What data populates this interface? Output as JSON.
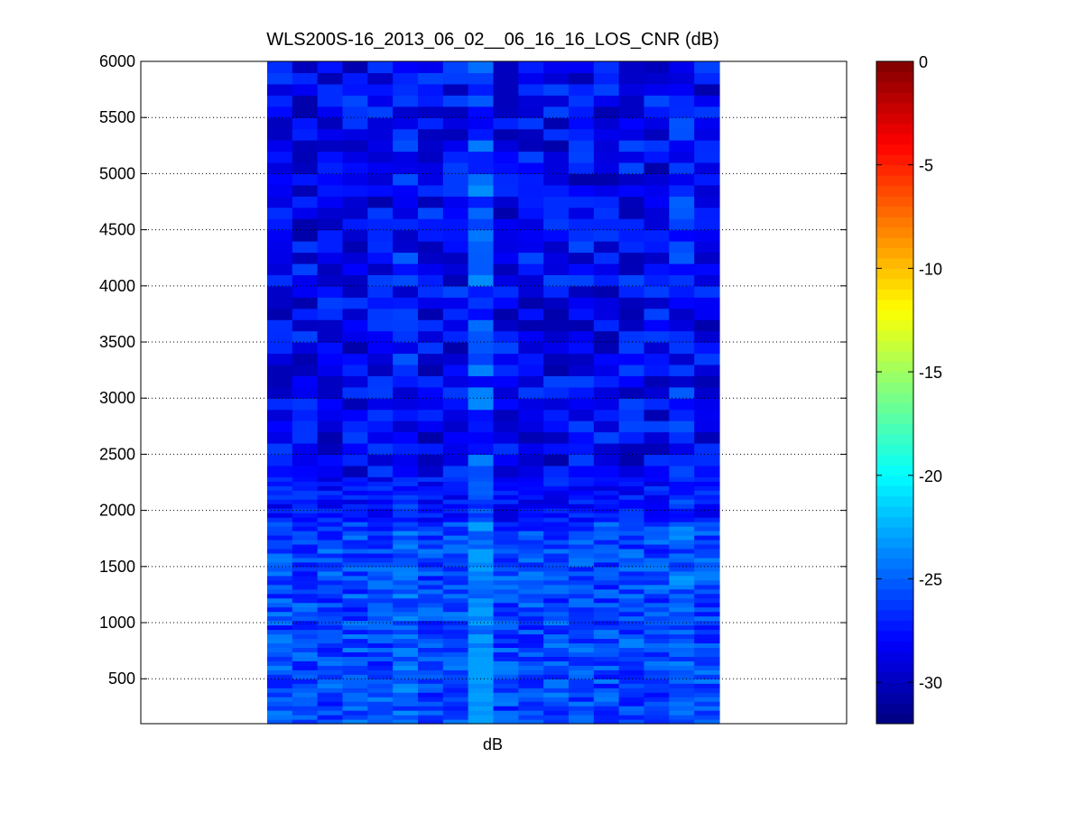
{
  "chart_data": {
    "type": "heatmap",
    "title": "WLS200S-16_2013_06_02__06_16_16_LOS_CNR (dB)",
    "xlabel": "dB",
    "ylabel": "",
    "ylim": [
      100,
      6000
    ],
    "yticks": [
      500,
      1000,
      1500,
      2000,
      2500,
      3000,
      3500,
      4000,
      4500,
      5000,
      5500,
      6000
    ],
    "grid": "horizontal dotted",
    "colormap": "jet",
    "colorbar": {
      "clim": [
        -32,
        0
      ],
      "ticks": [
        0,
        -5,
        -10,
        -15,
        -20,
        -25,
        -30
      ],
      "tick_labels": [
        "0",
        "-5",
        "-10",
        "-15",
        "-20",
        "-25",
        "-30"
      ]
    },
    "columns": 18,
    "rows": [
      {
        "range": [
          100,
          1900
        ],
        "value_range": [
          -30,
          -23
        ],
        "mean": -25.8
      },
      {
        "range": [
          1900,
          2300
        ],
        "value_range": [
          -31,
          -25
        ],
        "mean": -27.6
      },
      {
        "range": [
          2300,
          6000
        ],
        "value_range": [
          -32,
          -23
        ],
        "mean": -28.2
      }
    ]
  }
}
